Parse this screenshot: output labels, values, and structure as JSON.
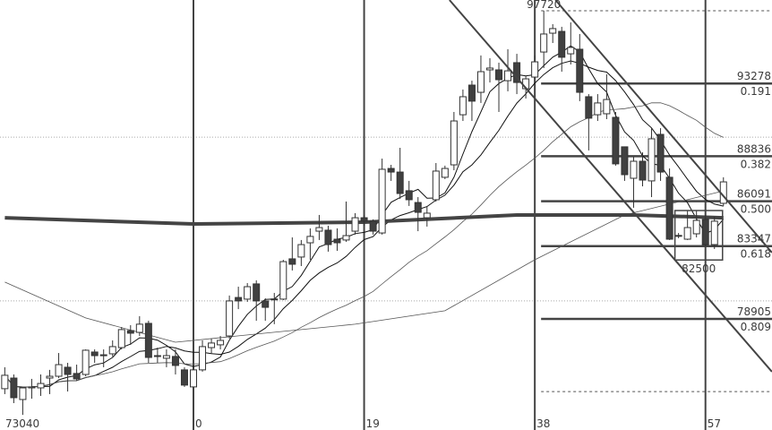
{
  "chart_data": {
    "type": "candlestick",
    "title": "",
    "x_axis_labels": [
      {
        "bar": -19,
        "text": "73040"
      },
      {
        "bar": 0,
        "text": "0"
      },
      {
        "bar": 19,
        "text": "19"
      },
      {
        "bar": 38,
        "text": "38"
      },
      {
        "bar": 57,
        "text": "57"
      }
    ],
    "vertical_marker_bars": [
      0,
      19,
      38,
      57
    ],
    "grid_levels": [
      90000,
      80000
    ],
    "ylim": [
      72500,
      97900
    ],
    "colors": {
      "up_body": "#ffffff",
      "down_body": "#404040",
      "outline": "#333333",
      "line": "#333333",
      "ma_gray": "#555555"
    },
    "candles_ohlc_from_bar": -21,
    "candles": [
      [
        74640,
        75950,
        74310,
        75460
      ],
      [
        75290,
        75510,
        73760,
        74090
      ],
      [
        73980,
        74690,
        73040,
        74690
      ],
      [
        74690,
        75240,
        74030,
        74750
      ],
      [
        74690,
        75510,
        74200,
        74960
      ],
      [
        75290,
        75790,
        74310,
        75400
      ],
      [
        75400,
        76820,
        75290,
        76110
      ],
      [
        75950,
        76220,
        74470,
        75510
      ],
      [
        75570,
        76110,
        75130,
        75240
      ],
      [
        75510,
        77040,
        75400,
        76990
      ],
      [
        76880,
        77040,
        76220,
        76660
      ],
      [
        76710,
        77040,
        75950,
        76660
      ],
      [
        76770,
        77590,
        76610,
        77210
      ],
      [
        77150,
        78410,
        77040,
        78250
      ],
      [
        78190,
        78520,
        77320,
        78030
      ],
      [
        78080,
        79070,
        77860,
        78580
      ],
      [
        78630,
        78790,
        76220,
        76550
      ],
      [
        76660,
        77150,
        76220,
        76610
      ],
      [
        76500,
        77040,
        75950,
        76660
      ],
      [
        76610,
        77040,
        75510,
        76060
      ],
      [
        75790,
        75950,
        74750,
        74860
      ],
      [
        74750,
        75950,
        74700,
        75790
      ],
      [
        75790,
        77590,
        75680,
        77210
      ],
      [
        77150,
        77700,
        76770,
        77430
      ],
      [
        77320,
        77860,
        77040,
        77590
      ],
      [
        77860,
        80330,
        77700,
        80000
      ],
      [
        80210,
        80870,
        79500,
        80000
      ],
      [
        80110,
        81090,
        79940,
        80870
      ],
      [
        81040,
        81260,
        78790,
        80000
      ],
      [
        80000,
        80160,
        78790,
        79610
      ],
      [
        80110,
        80490,
        78580,
        80120
      ],
      [
        80110,
        82510,
        80050,
        82400
      ],
      [
        82570,
        83880,
        81860,
        82240
      ],
      [
        82680,
        83720,
        82130,
        83440
      ],
      [
        83550,
        84430,
        82510,
        83940
      ],
      [
        84260,
        85250,
        83720,
        84480
      ],
      [
        84320,
        84590,
        83010,
        83440
      ],
      [
        83770,
        84430,
        83060,
        83550
      ],
      [
        83720,
        86070,
        83610,
        83990
      ],
      [
        84260,
        85360,
        84050,
        85080
      ],
      [
        85080,
        85250,
        84590,
        84870
      ],
      [
        84870,
        84980,
        84050,
        84260
      ],
      [
        84150,
        88690,
        84050,
        88040
      ],
      [
        88090,
        88310,
        87330,
        87870
      ],
      [
        87870,
        89350,
        86230,
        86560
      ],
      [
        86730,
        87330,
        85800,
        86180
      ],
      [
        86010,
        86340,
        84260,
        85410
      ],
      [
        85080,
        85800,
        84540,
        85360
      ],
      [
        86180,
        88420,
        86070,
        87930
      ],
      [
        87550,
        88260,
        87440,
        88090
      ],
      [
        88310,
        91540,
        87980,
        90990
      ],
      [
        91370,
        92910,
        90990,
        92470
      ],
      [
        93180,
        93450,
        90990,
        92200
      ],
      [
        92740,
        94990,
        92090,
        94000
      ],
      [
        94110,
        94820,
        93340,
        94220
      ],
      [
        94110,
        94550,
        91540,
        93510
      ],
      [
        93450,
        95370,
        92800,
        94050
      ],
      [
        94550,
        95090,
        92630,
        93340
      ],
      [
        92960,
        93730,
        92360,
        93560
      ],
      [
        93670,
        94990,
        93560,
        94600
      ],
      [
        95200,
        97720,
        94220,
        96300
      ],
      [
        96350,
        96900,
        95750,
        96630
      ],
      [
        96460,
        96740,
        94000,
        94880
      ],
      [
        95090,
        97010,
        94440,
        95480
      ],
      [
        95370,
        96300,
        92200,
        92740
      ],
      [
        92470,
        92630,
        89190,
        91160
      ],
      [
        91370,
        92630,
        90990,
        92090
      ],
      [
        91430,
        93840,
        91100,
        92300
      ],
      [
        91210,
        91540,
        88260,
        88370
      ],
      [
        89410,
        89410,
        87330,
        87710
      ],
      [
        87490,
        88800,
        85690,
        88530
      ],
      [
        88530,
        89080,
        87000,
        87380
      ],
      [
        87330,
        90550,
        86340,
        89900
      ],
      [
        90170,
        90550,
        87330,
        87870
      ],
      [
        87550,
        88090,
        83720,
        83770
      ],
      [
        83990,
        84150,
        83830,
        84000
      ],
      [
        83770,
        85520,
        83720,
        84480
      ],
      [
        84100,
        85520,
        83880,
        84920
      ],
      [
        84980,
        85250,
        83330,
        83440
      ],
      [
        83440,
        85140,
        83170,
        84870
      ],
      [
        85960,
        87550,
        85800,
        87270
      ]
    ],
    "moving_averages_computed": [
      5,
      10,
      25
    ],
    "ma_thick_points": [
      [
        -21,
        85080
      ],
      [
        0,
        84700
      ],
      [
        19,
        84810
      ],
      [
        36,
        85250
      ],
      [
        49,
        85250
      ],
      [
        59,
        85080
      ]
    ],
    "ma_long_points": [
      [
        -21,
        81150
      ],
      [
        -12,
        78960
      ],
      [
        -2,
        77480
      ],
      [
        8,
        78030
      ],
      [
        18,
        78580
      ],
      [
        28,
        79400
      ],
      [
        38,
        82510
      ],
      [
        48,
        85250
      ],
      [
        59,
        86720
      ]
    ],
    "high_label": {
      "bar": 39,
      "price": 97720,
      "text": "97720"
    },
    "fibonacci": {
      "start_bar": 38.7,
      "high": 97720,
      "low": 74463,
      "levels": [
        {
          "price": 93278,
          "price_text": "93278",
          "ratio_text": "0.191"
        },
        {
          "price": 88836,
          "price_text": "88836",
          "ratio_text": "0.382"
        },
        {
          "price": 86091,
          "price_text": "86091",
          "ratio_text": "0.500"
        },
        {
          "price": 83347,
          "price_text": "83347",
          "ratio_text": "0.618"
        },
        {
          "price": 78905,
          "price_text": "78905",
          "ratio_text": "0.809"
        }
      ]
    },
    "channel_lines": [
      [
        [
          28.5,
          98376
        ],
        [
          64.4,
          75676
        ]
      ],
      [
        [
          40.3,
          98376
        ],
        [
          64.4,
          82950
        ]
      ]
    ],
    "range_box": {
      "bar_from": 54,
      "bar_to": 59,
      "top": 85520,
      "bottom": 82500,
      "label": "82500"
    }
  }
}
